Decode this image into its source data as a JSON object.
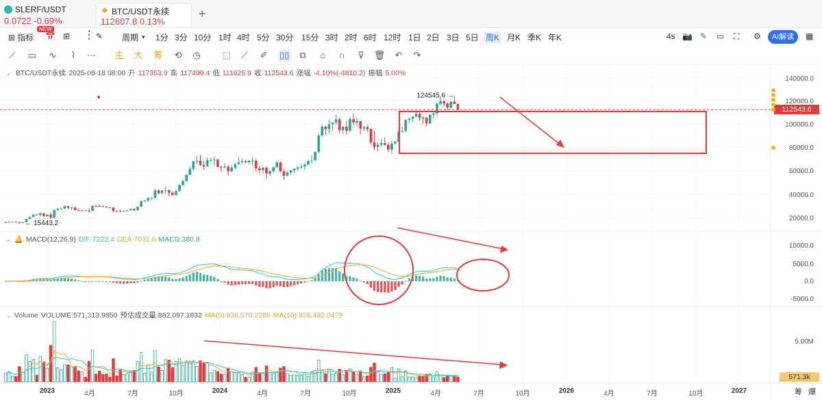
{
  "tabs": [
    {
      "symbol": "SLERF/USDT",
      "price": "0.0722",
      "change": "-0.69%"
    },
    {
      "symbol": "BTC/USDT永续",
      "price": "112607.8",
      "change": "0.13%"
    }
  ],
  "toolbar": {
    "indicators_label": "指标",
    "new_badge": "NEW",
    "period_label": "周期",
    "intervals": [
      "1分",
      "3分",
      "10分",
      "1时",
      "4时",
      "5分",
      "30分",
      "15分",
      "3时",
      "2时",
      "6时",
      "12时",
      "1日",
      "2日",
      "3日",
      "5日",
      "周K",
      "月K",
      "季K",
      "年K"
    ],
    "active_interval": "周K",
    "interval_4s": "4s",
    "ai_label": "AI解读"
  },
  "drawing_tools": {
    "main_label": "主",
    "big_label": "大",
    "chip_label": "筹"
  },
  "ohlc": {
    "pair": "BTC/USDT永续",
    "date": "2025-08-18 08:00",
    "open_label": "开",
    "open": "117353.9",
    "high_label": "高",
    "high": "117499.4",
    "low_label": "低",
    "low": "111625.9",
    "close_label": "收",
    "close": "112543.6",
    "change_label": "涨幅",
    "change": "-4.10%(-4810.2)",
    "amplitude_label": "振幅",
    "amplitude": "5.00%"
  },
  "price_axis": [
    "140000.0",
    "120000.0",
    "100000.0",
    "80000.0",
    "60000.0",
    "40000.0",
    "20000.0"
  ],
  "current_price": "112543.6",
  "high_marker": "124545.6",
  "low_marker": "15443.2",
  "macd": {
    "label": "MACD(12,26,9)",
    "dif": "DIF:7222.4",
    "dea": "DEA:7032.0",
    "macd": "MACD:380.8"
  },
  "macd_axis": [
    "10000.0",
    "5000.0",
    "0.0",
    "-5000.0"
  ],
  "volume": {
    "label": "Volume",
    "vol": "VOLUME:571,313.9850",
    "est": "预估成交量:882,097.1832",
    "ma5": "MA(5):836,570.2286",
    "ma10": "MA(10):925,492.0479"
  },
  "volume_axis": [
    "5.00M"
  ],
  "current_volume": "571.3k",
  "time_axis": [
    "2023",
    "4月",
    "7月",
    "10月",
    "2024",
    "4月",
    "7月",
    "10月",
    "2025",
    "4月",
    "7月",
    "10月",
    "2026",
    "4月",
    "7月",
    "10月",
    "2027"
  ],
  "time_axis_right": [
    "筹",
    "爆"
  ],
  "colors": {
    "up": "#26a69a",
    "down": "#e23b3b",
    "annotation": "#e53935",
    "dif": "#26c6da",
    "dea": "#f5a623",
    "ai": "#2e6cff"
  },
  "chart_data": {
    "type": "candlestick",
    "interval": "weekly",
    "price_range": [
      0,
      140000
    ],
    "candles": [
      {
        "o": 16500,
        "h": 17200,
        "l": 16300,
        "c": 16600
      },
      {
        "o": 16600,
        "h": 17500,
        "l": 16400,
        "c": 17000
      },
      {
        "o": 17000,
        "h": 17400,
        "l": 16800,
        "c": 17200
      },
      {
        "o": 17200,
        "h": 17300,
        "l": 16700,
        "c": 16900
      },
      {
        "o": 16900,
        "h": 17100,
        "l": 15443,
        "c": 16100
      },
      {
        "o": 16100,
        "h": 16800,
        "l": 15800,
        "c": 16700
      },
      {
        "o": 16700,
        "h": 19500,
        "l": 16600,
        "c": 19300
      },
      {
        "o": 19300,
        "h": 21500,
        "l": 19000,
        "c": 21000
      },
      {
        "o": 21000,
        "h": 23900,
        "l": 20900,
        "c": 23100
      },
      {
        "o": 23100,
        "h": 23500,
        "l": 22500,
        "c": 22800
      },
      {
        "o": 22800,
        "h": 25200,
        "l": 21500,
        "c": 24300
      },
      {
        "o": 24300,
        "h": 24500,
        "l": 21400,
        "c": 21800
      },
      {
        "o": 21800,
        "h": 23300,
        "l": 21400,
        "c": 23200
      },
      {
        "o": 23200,
        "h": 25000,
        "l": 19600,
        "c": 20500
      },
      {
        "o": 20500,
        "h": 28000,
        "l": 20100,
        "c": 26900
      },
      {
        "o": 26900,
        "h": 29000,
        "l": 26600,
        "c": 28000
      },
      {
        "o": 28000,
        "h": 29200,
        "l": 27000,
        "c": 28300
      },
      {
        "o": 28300,
        "h": 30900,
        "l": 27800,
        "c": 30300
      },
      {
        "o": 30300,
        "h": 30500,
        "l": 27200,
        "c": 28900
      },
      {
        "o": 28900,
        "h": 29800,
        "l": 27000,
        "c": 29200
      },
      {
        "o": 29200,
        "h": 29700,
        "l": 26800,
        "c": 27000
      },
      {
        "o": 27000,
        "h": 28300,
        "l": 26400,
        "c": 26800
      },
      {
        "o": 26800,
        "h": 27500,
        "l": 25800,
        "c": 26900
      },
      {
        "o": 26900,
        "h": 27200,
        "l": 26400,
        "c": 26500
      },
      {
        "o": 26500,
        "h": 28300,
        "l": 24800,
        "c": 26300
      },
      {
        "o": 26300,
        "h": 31400,
        "l": 26100,
        "c": 30500
      },
      {
        "o": 30500,
        "h": 31300,
        "l": 29800,
        "c": 30400
      },
      {
        "o": 30400,
        "h": 31800,
        "l": 29700,
        "c": 30200
      },
      {
        "o": 30200,
        "h": 31000,
        "l": 29600,
        "c": 29800
      },
      {
        "o": 29800,
        "h": 30400,
        "l": 28900,
        "c": 29200
      },
      {
        "o": 29200,
        "h": 29600,
        "l": 28700,
        "c": 29100
      },
      {
        "o": 29100,
        "h": 29500,
        "l": 25200,
        "c": 26100
      },
      {
        "o": 26100,
        "h": 26800,
        "l": 25800,
        "c": 26000
      },
      {
        "o": 26000,
        "h": 27400,
        "l": 25400,
        "c": 25900
      },
      {
        "o": 25900,
        "h": 26600,
        "l": 25400,
        "c": 26200
      },
      {
        "o": 26200,
        "h": 27400,
        "l": 26000,
        "c": 26900
      },
      {
        "o": 26900,
        "h": 28400,
        "l": 26500,
        "c": 27900
      },
      {
        "o": 27900,
        "h": 28600,
        "l": 26600,
        "c": 26800
      },
      {
        "o": 26800,
        "h": 30000,
        "l": 26500,
        "c": 29900
      },
      {
        "o": 29900,
        "h": 35200,
        "l": 29600,
        "c": 34500
      },
      {
        "o": 34500,
        "h": 35900,
        "l": 34000,
        "c": 35000
      },
      {
        "o": 35000,
        "h": 37900,
        "l": 34100,
        "c": 37300
      },
      {
        "o": 37300,
        "h": 37900,
        "l": 35600,
        "c": 37400
      },
      {
        "o": 37400,
        "h": 44500,
        "l": 37000,
        "c": 43700
      },
      {
        "o": 43700,
        "h": 44700,
        "l": 40500,
        "c": 41300
      },
      {
        "o": 41300,
        "h": 44000,
        "l": 41000,
        "c": 43600
      },
      {
        "o": 43600,
        "h": 47000,
        "l": 40800,
        "c": 43900
      },
      {
        "o": 43900,
        "h": 44600,
        "l": 38500,
        "c": 41700
      },
      {
        "o": 41700,
        "h": 42800,
        "l": 39000,
        "c": 39900
      },
      {
        "o": 39900,
        "h": 43800,
        "l": 38600,
        "c": 43200
      },
      {
        "o": 43200,
        "h": 48900,
        "l": 42500,
        "c": 48300
      },
      {
        "o": 48300,
        "h": 52800,
        "l": 47700,
        "c": 51800
      },
      {
        "o": 51800,
        "h": 57500,
        "l": 50600,
        "c": 57000
      },
      {
        "o": 57000,
        "h": 64000,
        "l": 56500,
        "c": 62000
      },
      {
        "o": 62000,
        "h": 69000,
        "l": 60600,
        "c": 68300
      },
      {
        "o": 68300,
        "h": 72900,
        "l": 66200,
        "c": 69000
      },
      {
        "o": 69000,
        "h": 73800,
        "l": 64500,
        "c": 65300
      },
      {
        "o": 65300,
        "h": 68900,
        "l": 61200,
        "c": 64000
      },
      {
        "o": 64000,
        "h": 71700,
        "l": 64000,
        "c": 69600
      },
      {
        "o": 69600,
        "h": 72000,
        "l": 68000,
        "c": 69600
      },
      {
        "o": 69600,
        "h": 72700,
        "l": 64500,
        "c": 70000
      },
      {
        "o": 70000,
        "h": 70500,
        "l": 63000,
        "c": 63800
      },
      {
        "o": 63800,
        "h": 64700,
        "l": 59600,
        "c": 63200
      },
      {
        "o": 63200,
        "h": 67000,
        "l": 62200,
        "c": 64000
      },
      {
        "o": 64000,
        "h": 65500,
        "l": 56500,
        "c": 60000
      },
      {
        "o": 60000,
        "h": 65200,
        "l": 59000,
        "c": 63000
      },
      {
        "o": 63000,
        "h": 67400,
        "l": 61500,
        "c": 66200
      },
      {
        "o": 66200,
        "h": 71900,
        "l": 65600,
        "c": 67700
      },
      {
        "o": 67700,
        "h": 71000,
        "l": 66000,
        "c": 68500
      },
      {
        "o": 68500,
        "h": 70000,
        "l": 66800,
        "c": 67800
      },
      {
        "o": 67800,
        "h": 69500,
        "l": 66200,
        "c": 68900
      },
      {
        "o": 68900,
        "h": 71900,
        "l": 65000,
        "c": 69000
      },
      {
        "o": 69000,
        "h": 70200,
        "l": 60000,
        "c": 62500
      },
      {
        "o": 62500,
        "h": 64400,
        "l": 58500,
        "c": 61000
      },
      {
        "o": 61000,
        "h": 63500,
        "l": 58200,
        "c": 63000
      },
      {
        "o": 63000,
        "h": 63800,
        "l": 53500,
        "c": 58000
      },
      {
        "o": 58000,
        "h": 61000,
        "l": 55600,
        "c": 60000
      },
      {
        "o": 60000,
        "h": 64000,
        "l": 59000,
        "c": 63500
      },
      {
        "o": 63500,
        "h": 69000,
        "l": 62700,
        "c": 67500
      },
      {
        "o": 67500,
        "h": 68500,
        "l": 59000,
        "c": 60000
      },
      {
        "o": 60000,
        "h": 62000,
        "l": 52600,
        "c": 56200
      },
      {
        "o": 56200,
        "h": 60300,
        "l": 55500,
        "c": 59000
      },
      {
        "o": 59000,
        "h": 61500,
        "l": 57500,
        "c": 60800
      },
      {
        "o": 60800,
        "h": 62600,
        "l": 58300,
        "c": 62200
      },
      {
        "o": 62200,
        "h": 64500,
        "l": 60200,
        "c": 63400
      },
      {
        "o": 63400,
        "h": 66500,
        "l": 62200,
        "c": 64200
      },
      {
        "o": 64200,
        "h": 67200,
        "l": 61000,
        "c": 65600
      },
      {
        "o": 65600,
        "h": 69500,
        "l": 66000,
        "c": 68700
      },
      {
        "o": 68700,
        "h": 73600,
        "l": 66500,
        "c": 69300
      },
      {
        "o": 69300,
        "h": 77000,
        "l": 69000,
        "c": 76500
      },
      {
        "o": 76500,
        "h": 92000,
        "l": 75000,
        "c": 90500
      },
      {
        "o": 90500,
        "h": 99500,
        "l": 89000,
        "c": 98000
      },
      {
        "o": 98000,
        "h": 99000,
        "l": 90800,
        "c": 96000
      },
      {
        "o": 96000,
        "h": 103900,
        "l": 91900,
        "c": 100000
      },
      {
        "o": 100000,
        "h": 101900,
        "l": 94200,
        "c": 101400
      },
      {
        "o": 101400,
        "h": 108300,
        "l": 99500,
        "c": 104200
      },
      {
        "o": 104200,
        "h": 106000,
        "l": 92500,
        "c": 95000
      },
      {
        "o": 95000,
        "h": 98500,
        "l": 91600,
        "c": 98000
      },
      {
        "o": 98000,
        "h": 102700,
        "l": 91200,
        "c": 94500
      },
      {
        "o": 94500,
        "h": 106000,
        "l": 93500,
        "c": 104500
      },
      {
        "o": 104500,
        "h": 109300,
        "l": 99000,
        "c": 101500
      },
      {
        "o": 101500,
        "h": 105500,
        "l": 97800,
        "c": 102800
      },
      {
        "o": 102800,
        "h": 102800,
        "l": 91200,
        "c": 96400
      },
      {
        "o": 96400,
        "h": 98900,
        "l": 94000,
        "c": 97600
      },
      {
        "o": 97600,
        "h": 99500,
        "l": 93500,
        "c": 96000
      },
      {
        "o": 96000,
        "h": 96800,
        "l": 82400,
        "c": 84500
      },
      {
        "o": 84500,
        "h": 94500,
        "l": 78200,
        "c": 80700
      },
      {
        "o": 80700,
        "h": 85000,
        "l": 76600,
        "c": 82600
      },
      {
        "o": 82600,
        "h": 87500,
        "l": 81200,
        "c": 84000
      },
      {
        "o": 84000,
        "h": 88700,
        "l": 81800,
        "c": 82500
      },
      {
        "o": 82500,
        "h": 84500,
        "l": 76600,
        "c": 78400
      },
      {
        "o": 78400,
        "h": 86000,
        "l": 74500,
        "c": 83700
      },
      {
        "o": 83700,
        "h": 86000,
        "l": 83000,
        "c": 85300
      },
      {
        "o": 85300,
        "h": 95800,
        "l": 84500,
        "c": 93800
      },
      {
        "o": 93800,
        "h": 97900,
        "l": 92800,
        "c": 94300
      },
      {
        "o": 94300,
        "h": 104000,
        "l": 93300,
        "c": 103800
      },
      {
        "o": 103800,
        "h": 105800,
        "l": 100700,
        "c": 104700
      },
      {
        "o": 104700,
        "h": 107100,
        "l": 102000,
        "c": 106500
      },
      {
        "o": 106500,
        "h": 110500,
        "l": 106000,
        "c": 108900
      },
      {
        "o": 108900,
        "h": 110000,
        "l": 103000,
        "c": 105700
      },
      {
        "o": 105700,
        "h": 106700,
        "l": 100300,
        "c": 105500
      },
      {
        "o": 105500,
        "h": 106300,
        "l": 98200,
        "c": 100900
      },
      {
        "o": 100900,
        "h": 108500,
        "l": 100300,
        "c": 108300
      },
      {
        "o": 108300,
        "h": 110500,
        "l": 105000,
        "c": 109200
      },
      {
        "o": 109200,
        "h": 118800,
        "l": 107500,
        "c": 117500
      },
      {
        "o": 117500,
        "h": 123200,
        "l": 115800,
        "c": 119800
      },
      {
        "o": 119800,
        "h": 120300,
        "l": 115000,
        "c": 117600
      },
      {
        "o": 117600,
        "h": 118900,
        "l": 112000,
        "c": 114200
      },
      {
        "o": 114200,
        "h": 119300,
        "l": 112700,
        "c": 119300
      },
      {
        "o": 119300,
        "h": 124545.6,
        "l": 117300,
        "c": 117353.9
      },
      {
        "o": 117353.9,
        "h": 117499.4,
        "l": 111625.9,
        "c": 112543.6
      }
    ]
  }
}
